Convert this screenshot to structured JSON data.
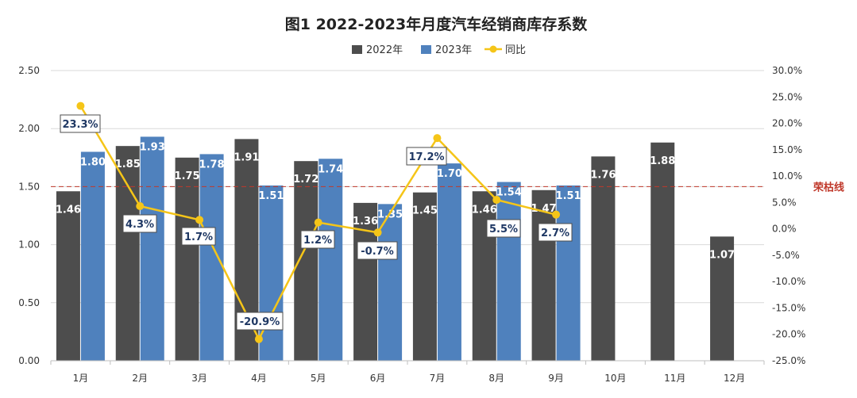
{
  "chart_data": {
    "type": "bar",
    "title": "图1  2022-2023年月度汽车经销商库存系数",
    "categories": [
      "1月",
      "2月",
      "3月",
      "4月",
      "5月",
      "6月",
      "7月",
      "8月",
      "9月",
      "10月",
      "11月",
      "12月"
    ],
    "series": [
      {
        "name": "2022年",
        "type": "bar",
        "color": "#4d4d4d",
        "values": [
          1.46,
          1.85,
          1.75,
          1.91,
          1.72,
          1.36,
          1.45,
          1.46,
          1.47,
          1.76,
          1.88,
          1.07
        ]
      },
      {
        "name": "2023年",
        "type": "bar",
        "color": "#4f81bd",
        "values": [
          1.8,
          1.93,
          1.78,
          1.51,
          1.74,
          1.35,
          1.7,
          1.54,
          1.51,
          null,
          null,
          null
        ]
      },
      {
        "name": "同比",
        "type": "line",
        "axis": "right",
        "color": "#f5c518",
        "values": [
          23.3,
          4.3,
          1.7,
          -20.9,
          1.2,
          -0.7,
          17.2,
          5.5,
          2.7,
          null,
          null,
          null
        ]
      }
    ],
    "bar_labels_2022": [
      "1.46",
      "1.85",
      "1.75",
      "1.91",
      "1.72",
      "1.36",
      "1.45",
      "1.46",
      "1.47",
      "1.76",
      "1.88",
      "1.07"
    ],
    "bar_labels_2023": [
      "1.80",
      "1.93",
      "1.78",
      "1.51",
      "1.74",
      "1.35",
      "1.70",
      "1.54",
      "1.51"
    ],
    "pct_labels": [
      "23.3%",
      "4.3%",
      "1.7%",
      "-20.9%",
      "1.2%",
      "-0.7%",
      "17.2%",
      "5.5%",
      "2.7%"
    ],
    "left_axis": {
      "min": 0,
      "max": 2.5,
      "ticks": [
        "0.00",
        "0.50",
        "1.00",
        "1.50",
        "2.00",
        "2.50"
      ]
    },
    "right_axis": {
      "min": -25,
      "max": 30,
      "ticks": [
        "-25.0%",
        "-20.0%",
        "-15.0%",
        "-10.0%",
        "-5.0%",
        "0.0%",
        "5.0%",
        "10.0%",
        "15.0%",
        "20.0%",
        "25.0%",
        "30.0%"
      ]
    },
    "reference_line": {
      "value": 1.5,
      "label": "荣枯线",
      "color": "#c0392b"
    },
    "legend": {
      "position": "top",
      "items": [
        "2022年",
        "2023年",
        "同比"
      ]
    },
    "grid": true
  }
}
